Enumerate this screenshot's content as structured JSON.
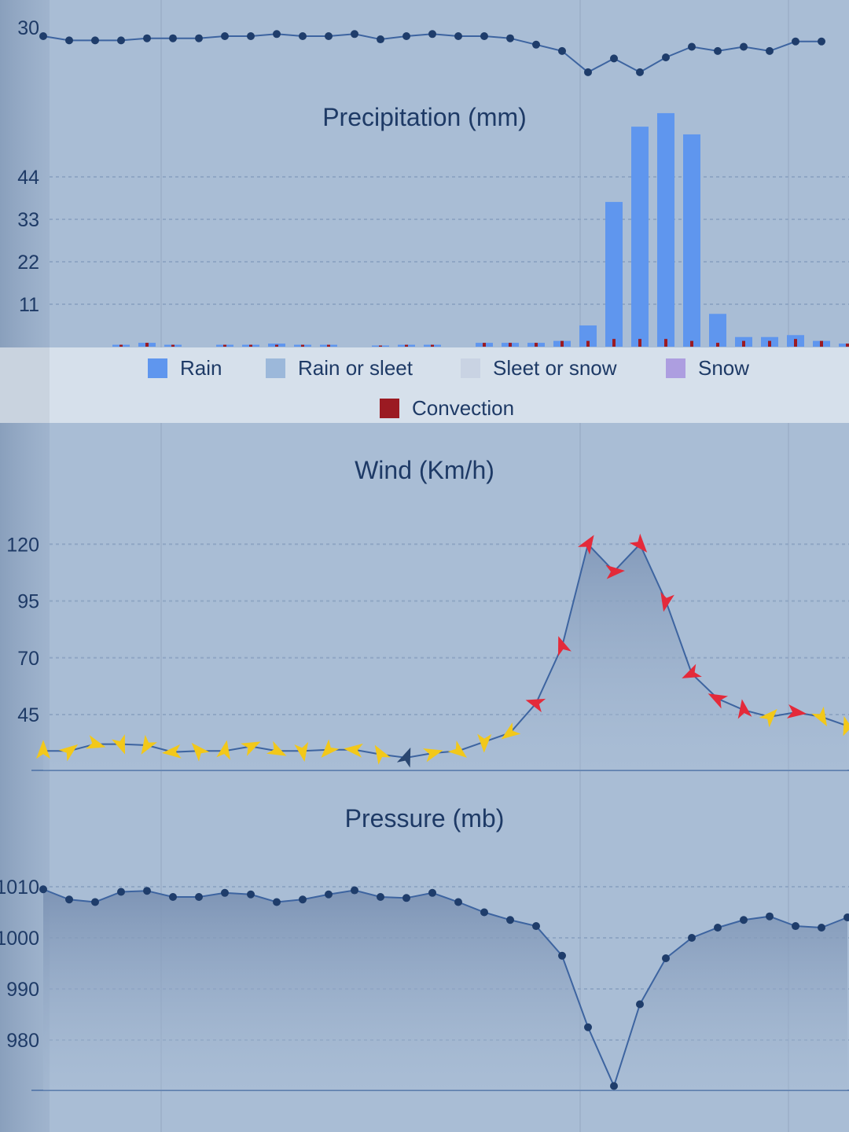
{
  "chart_data": [
    {
      "type": "line",
      "ytick_labels": [
        "30"
      ],
      "yticks": [
        30
      ],
      "values": [
        30.0,
        29.6,
        29.6,
        29.6,
        29.8,
        29.8,
        29.8,
        30.0,
        30.0,
        30.2,
        30.0,
        30.0,
        30.2,
        29.7,
        30.0,
        30.2,
        30.0,
        30.0,
        29.8,
        29.2,
        28.6,
        26.6,
        27.9,
        26.6,
        28.0,
        29.0,
        28.6,
        29.0,
        28.6,
        29.5,
        29.5
      ],
      "color": "#1f3d6b"
    },
    {
      "type": "bar",
      "title": "Precipitation (mm)",
      "ytick_labels": [
        "44",
        "33",
        "22",
        "11"
      ],
      "yticks": [
        44,
        33,
        22,
        11
      ],
      "ylim": [
        0,
        55
      ],
      "series": [
        {
          "name": "Rain",
          "color": "#5f96ee",
          "values": [
            0,
            0.5,
            1,
            0.5,
            0,
            0.5,
            0.5,
            0.8,
            0.5,
            0.5,
            0,
            0.3,
            0.5,
            0.5,
            0,
            1,
            1,
            1,
            1.5,
            5.5,
            37.5,
            57,
            60.5,
            55,
            8.5,
            2.5,
            2.5,
            3,
            1.5,
            0.8,
            0.5
          ]
        },
        {
          "name": "Rain or sleet",
          "color": "#9cb8da",
          "values": []
        },
        {
          "name": "Sleet or snow",
          "color": "#c9d3e3",
          "values": []
        },
        {
          "name": "Snow",
          "color": "#ad9ee0",
          "values": []
        },
        {
          "name": "Convection",
          "color": "#9b1a22",
          "values": [
            0,
            0.5,
            1,
            0.5,
            0,
            0.5,
            0.5,
            0.5,
            0.5,
            0.5,
            0,
            0.3,
            0.5,
            0.5,
            0,
            1,
            1,
            1,
            1.5,
            1.5,
            2,
            2,
            2,
            1.5,
            1,
            1.5,
            1.5,
            2,
            1.5,
            0.8,
            0.5
          ]
        }
      ]
    },
    {
      "type": "area",
      "title": "Wind (Km/h)",
      "ytick_labels": [
        "120",
        "95",
        "70",
        "45"
      ],
      "yticks": [
        120,
        95,
        70,
        45
      ],
      "ylim": [
        20,
        130
      ],
      "values": [
        29,
        29,
        32,
        32,
        31.5,
        28.5,
        29,
        29,
        31,
        29,
        29,
        29.5,
        29.5,
        27.5,
        26,
        28,
        29,
        33,
        37,
        50,
        75,
        120,
        108,
        120,
        95,
        63,
        52,
        47,
        44,
        46,
        44,
        40
      ],
      "arrow_colors": [
        "y",
        "y",
        "y",
        "y",
        "y",
        "y",
        "y",
        "y",
        "y",
        "y",
        "y",
        "y",
        "y",
        "y",
        "n",
        "y",
        "y",
        "y",
        "y",
        "r",
        "r",
        "r",
        "r",
        "r",
        "r",
        "r",
        "r",
        "r",
        "y",
        "r",
        "y",
        "y"
      ]
    },
    {
      "type": "area",
      "title": "Pressure (mb)",
      "ytick_labels": [
        "1010",
        "1000",
        "990",
        "980"
      ],
      "yticks": [
        1010,
        1000,
        990,
        980
      ],
      "ylim": [
        970,
        1013
      ],
      "values": [
        1009.5,
        1007.5,
        1007,
        1009,
        1009.2,
        1008,
        1008,
        1008.8,
        1008.5,
        1007,
        1007.5,
        1008.5,
        1009.3,
        1008,
        1007.8,
        1008.8,
        1007,
        1005,
        1003.5,
        1002.3,
        996.5,
        982.5,
        971,
        987,
        996,
        1000,
        1002,
        1003.5,
        1004.2,
        1002.3,
        1002,
        1004
      ]
    }
  ],
  "legend": {
    "row1": [
      "Rain",
      "Rain or sleet",
      "Sleet or snow",
      "Snow"
    ],
    "row2": [
      "Convection"
    ]
  },
  "colors": {
    "background": "#a9bdd5",
    "axis_text": "#1e3a66",
    "line": "#3d64a0",
    "rain": "#5f96ee",
    "convection": "#9b1a22",
    "arrow_yellow": "#f2c81a",
    "arrow_red": "#e42a3a",
    "arrow_navy": "#2a4670"
  }
}
